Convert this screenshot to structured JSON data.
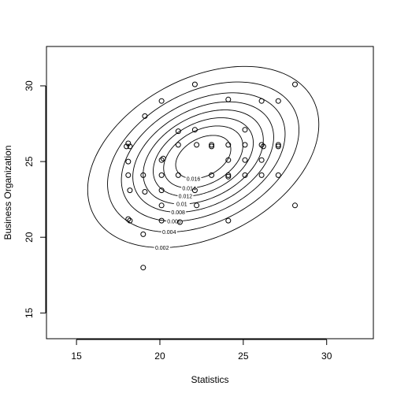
{
  "chart_data": {
    "type": "scatter",
    "xlabel": "Statistics",
    "ylabel": "Business Organization",
    "xlim": [
      13.2,
      32.8
    ],
    "ylim": [
      13.3,
      32.6
    ],
    "x_ticks": [
      15,
      20,
      25,
      30
    ],
    "y_ticks": [
      15,
      20,
      25,
      30
    ],
    "grid": false,
    "points": [
      {
        "x": 18,
        "y": 26
      },
      {
        "x": 18.1,
        "y": 26.2
      },
      {
        "x": 18.2,
        "y": 26.0
      },
      {
        "x": 18.1,
        "y": 25.0
      },
      {
        "x": 18.1,
        "y": 24.1
      },
      {
        "x": 18.2,
        "y": 23.1
      },
      {
        "x": 18.1,
        "y": 21.2
      },
      {
        "x": 18.2,
        "y": 21.1
      },
      {
        "x": 19.1,
        "y": 28.0
      },
      {
        "x": 19.0,
        "y": 24.1
      },
      {
        "x": 19.1,
        "y": 23.0
      },
      {
        "x": 19.0,
        "y": 20.2
      },
      {
        "x": 19.0,
        "y": 18.0
      },
      {
        "x": 20.1,
        "y": 29.0
      },
      {
        "x": 20.1,
        "y": 25.1
      },
      {
        "x": 20.2,
        "y": 25.2
      },
      {
        "x": 20.1,
        "y": 24.1
      },
      {
        "x": 20.1,
        "y": 23.1
      },
      {
        "x": 20.1,
        "y": 22.1
      },
      {
        "x": 20.1,
        "y": 21.1
      },
      {
        "x": 21.1,
        "y": 27.0
      },
      {
        "x": 21.1,
        "y": 26.1
      },
      {
        "x": 21.1,
        "y": 24.1
      },
      {
        "x": 21.2,
        "y": 21.0
      },
      {
        "x": 22.1,
        "y": 30.1
      },
      {
        "x": 22.1,
        "y": 27.1
      },
      {
        "x": 22.2,
        "y": 26.1
      },
      {
        "x": 22.1,
        "y": 23.1
      },
      {
        "x": 22.2,
        "y": 22.1
      },
      {
        "x": 23.1,
        "y": 26.1
      },
      {
        "x": 23.1,
        "y": 26.0
      },
      {
        "x": 23.1,
        "y": 24.1
      },
      {
        "x": 24.1,
        "y": 29.1
      },
      {
        "x": 24.1,
        "y": 26.1
      },
      {
        "x": 24.1,
        "y": 25.1
      },
      {
        "x": 24.1,
        "y": 24.1
      },
      {
        "x": 24.1,
        "y": 24.0
      },
      {
        "x": 24.1,
        "y": 21.1
      },
      {
        "x": 25.1,
        "y": 27.1
      },
      {
        "x": 25.1,
        "y": 26.1
      },
      {
        "x": 25.1,
        "y": 25.1
      },
      {
        "x": 25.1,
        "y": 24.1
      },
      {
        "x": 26.1,
        "y": 29.0
      },
      {
        "x": 26.1,
        "y": 26.1
      },
      {
        "x": 26.2,
        "y": 26.0
      },
      {
        "x": 26.1,
        "y": 25.1
      },
      {
        "x": 26.1,
        "y": 24.1
      },
      {
        "x": 27.1,
        "y": 29.0
      },
      {
        "x": 27.1,
        "y": 26.1
      },
      {
        "x": 27.1,
        "y": 26.0
      },
      {
        "x": 27.1,
        "y": 24.1
      },
      {
        "x": 28.1,
        "y": 30.1
      },
      {
        "x": 28.1,
        "y": 22.1
      }
    ],
    "density": {
      "mean_x": 22.6,
      "mean_y": 25.3,
      "sd_x": 3.3,
      "sd_y": 2.85,
      "rho": 0.36,
      "levels": [
        0.002,
        0.004,
        0.006,
        0.008,
        0.01,
        0.012,
        0.014,
        0.016
      ]
    },
    "contour_labels": [
      {
        "text": "0.002",
        "level": 0.002
      },
      {
        "text": "0.004",
        "level": 0.004
      },
      {
        "text": "0.006",
        "level": 0.006
      },
      {
        "text": "0.008",
        "level": 0.008
      },
      {
        "text": "0.01",
        "level": 0.01
      },
      {
        "text": "0.012",
        "level": 0.012
      },
      {
        "text": "0.014",
        "level": 0.014
      },
      {
        "text": "0.016",
        "level": 0.016
      }
    ]
  }
}
